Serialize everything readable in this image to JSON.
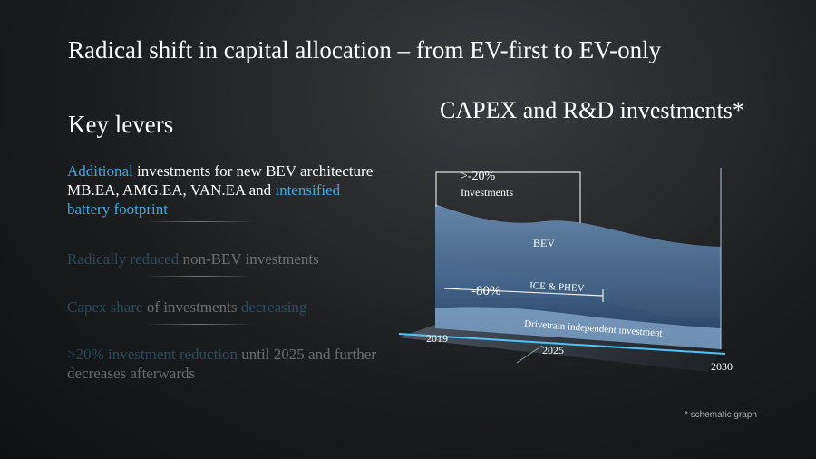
{
  "title": "Radical shift in capital allocation – from EV-first to EV-only",
  "levers": {
    "heading": "Key levers",
    "items": [
      [
        "Additional",
        " investments for new BEV architecture MB.EA, AMG.EA, VAN.EA and ",
        "intensified battery footprint"
      ],
      [
        "Radically reduced",
        " non-BEV investments"
      ],
      [
        "Capex share",
        " of investments ",
        "decreasing"
      ],
      [
        ">20% investment reduction",
        " until 2025 and further decreases afterwards"
      ]
    ]
  },
  "graph": {
    "heading": "CAPEX and R&D investments*",
    "bracket_label": ">-20%",
    "bracket_sublabel": "Investments",
    "areas": [
      "BEV",
      "ICE & PHEV",
      "Drivetrain independent investment"
    ],
    "reduction_label": "-80%",
    "years": [
      "2019",
      "2025",
      "2030"
    ],
    "footnote": "* schematic graph"
  }
}
